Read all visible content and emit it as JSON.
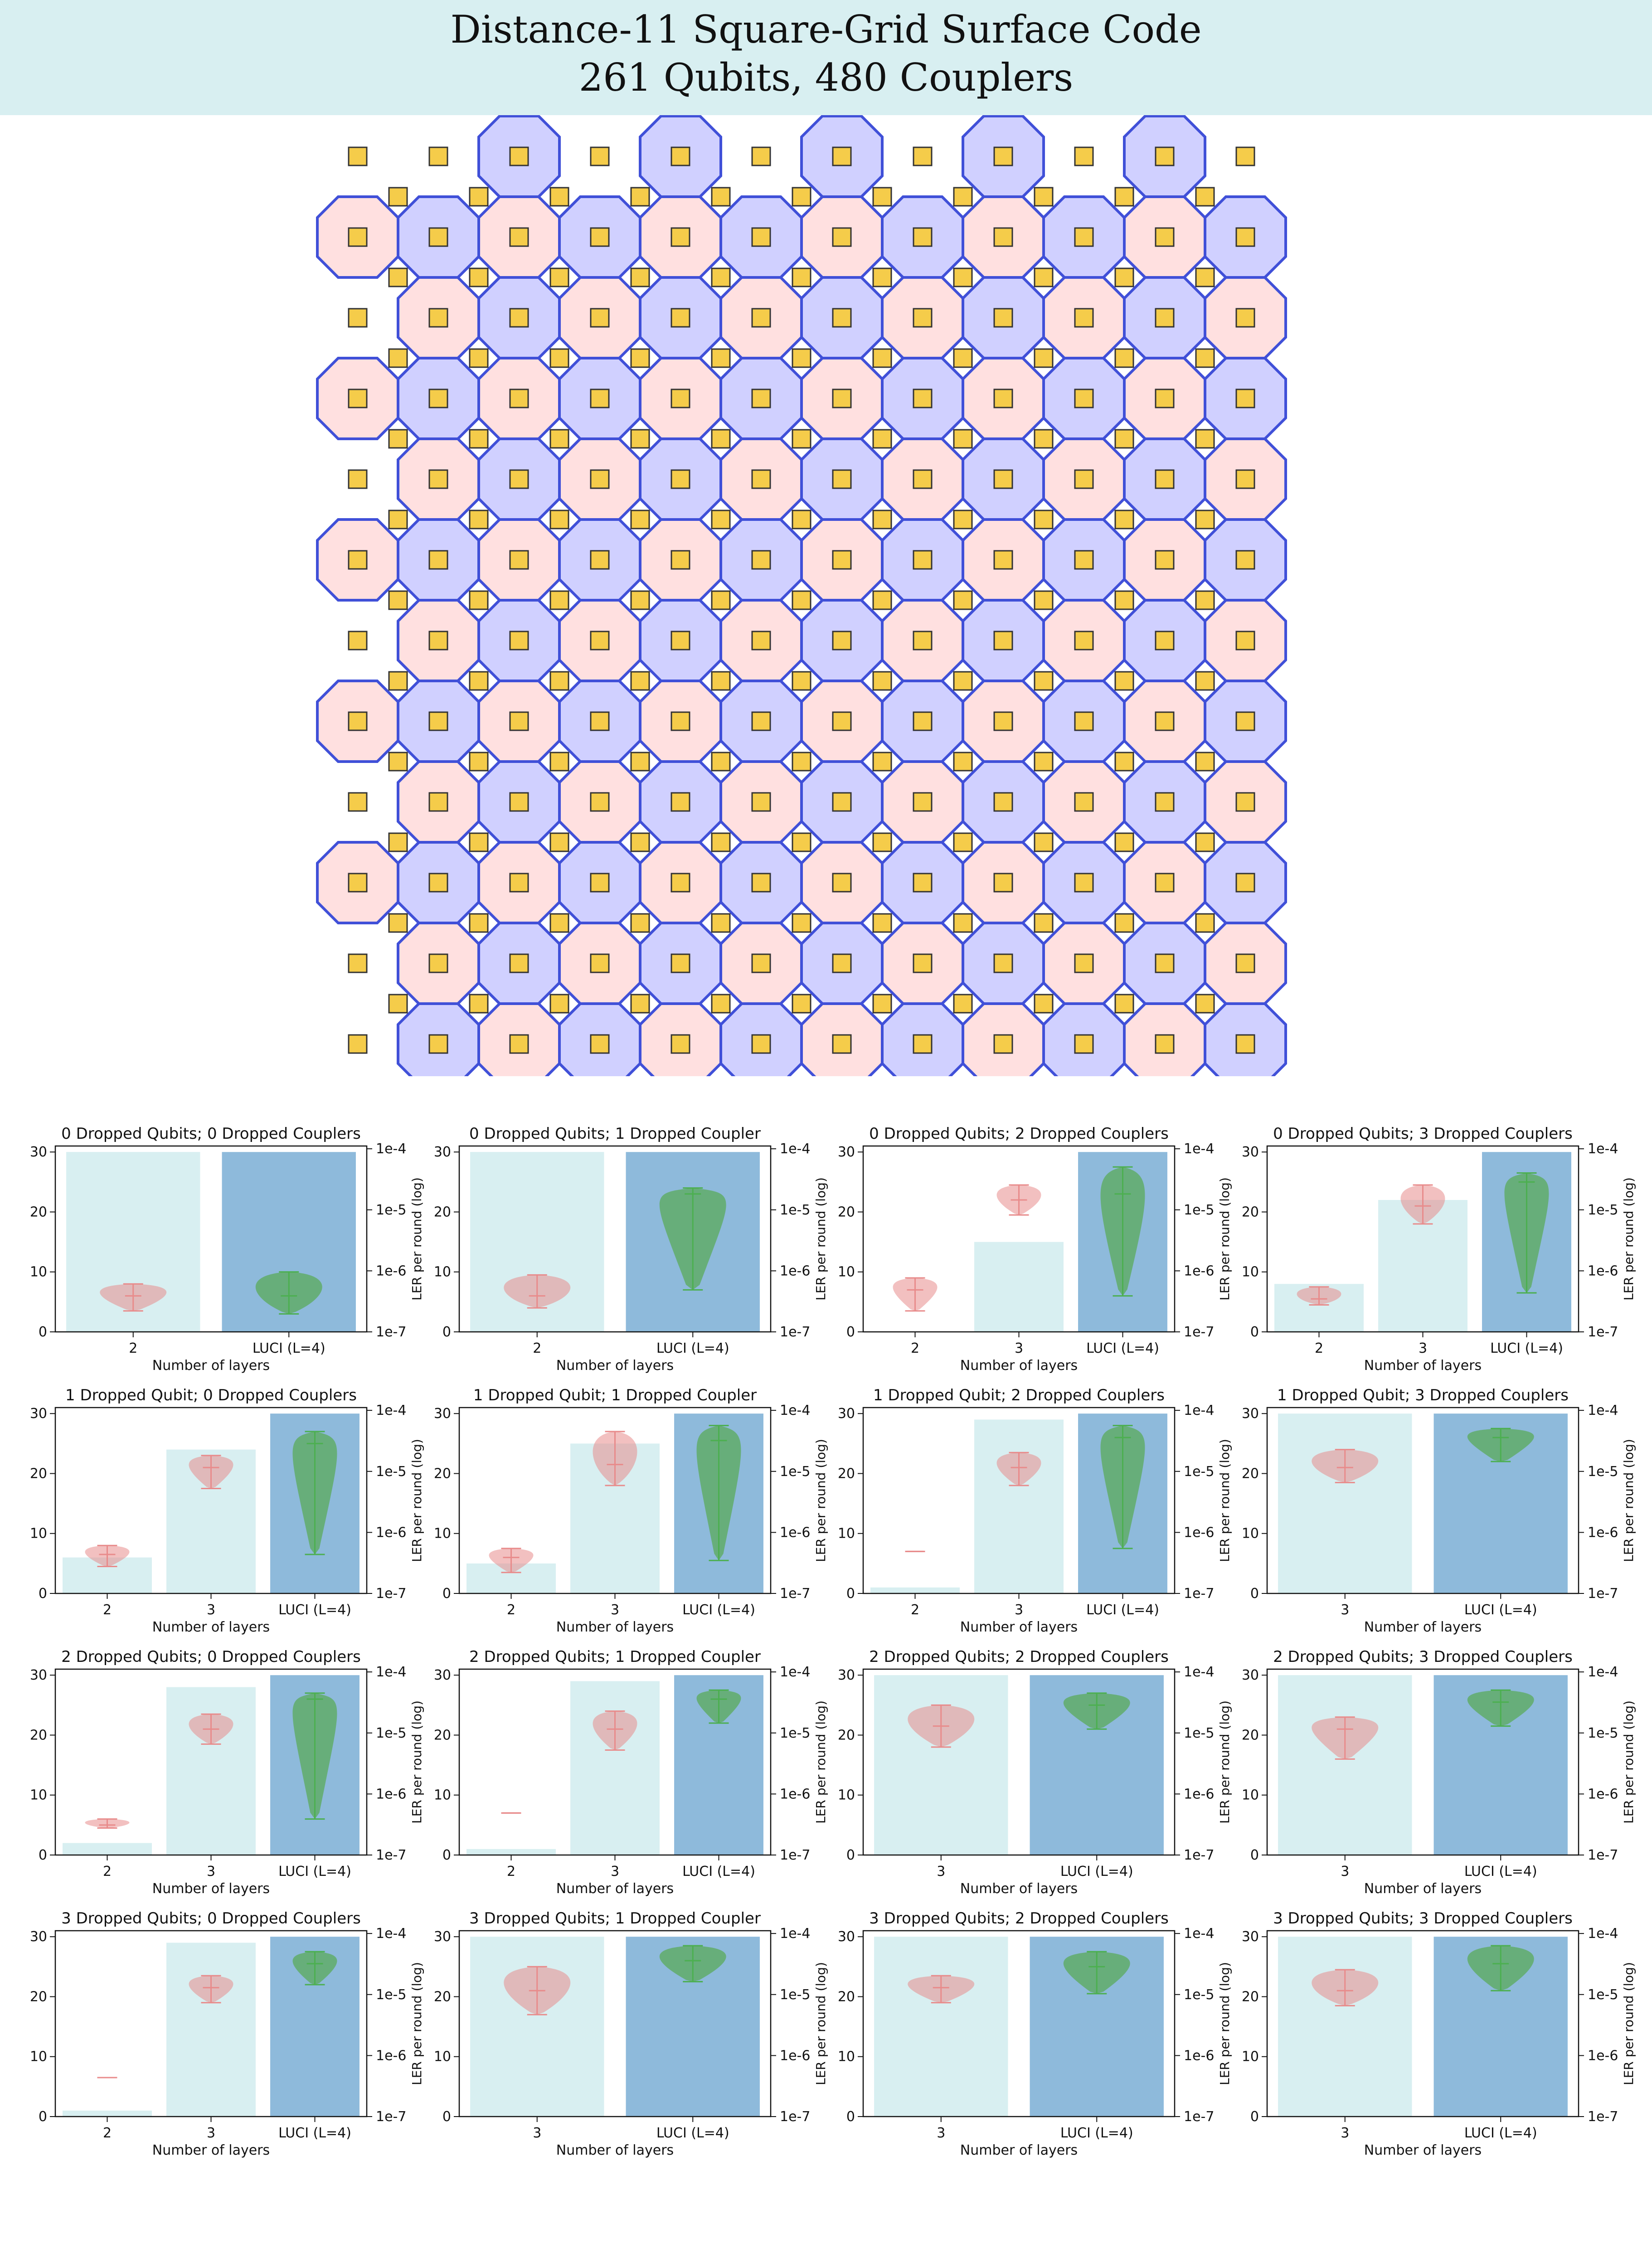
{
  "header": {
    "title_line1": "Distance-11 Square-Grid Surface Code",
    "title_line2": "261 Qubits, 480 Couplers"
  },
  "lattice": {
    "code_distance": 11,
    "colors": {
      "qubit": "#f5cc4a",
      "qubit_border": "#333333",
      "coupler": "#5060e0",
      "x_plaquette": "#d0d0ff",
      "z_plaquette": "#ffe0e0",
      "plaquette_border": "#4050d8"
    }
  },
  "chart_data": [
    {
      "type": "bar",
      "title": "0 Dropped Qubits; 0 Dropped Couplers",
      "xlabel": "Number of layers",
      "ylabel": "",
      "y2label": "LER per round (log)",
      "categories": [
        "2",
        "LUCI (L=4)"
      ],
      "values": [
        30,
        30
      ],
      "ylim": [
        0,
        31
      ],
      "yticks": [
        "0",
        "10",
        "20",
        "30"
      ],
      "y2ticks": [
        "1e-7",
        "1e-6",
        "1e-5",
        "1e-4"
      ],
      "violins": [
        {
          "min": 3.5,
          "max": 8,
          "median": 6
        },
        {
          "min": 3,
          "max": 10,
          "median": 6
        }
      ]
    },
    {
      "type": "bar",
      "title": "0 Dropped Qubits; 1 Dropped Coupler",
      "xlabel": "Number of layers",
      "ylabel": "",
      "y2label": "LER per round (log)",
      "categories": [
        "2",
        "LUCI (L=4)"
      ],
      "values": [
        30,
        30
      ],
      "ylim": [
        0,
        31
      ],
      "yticks": [
        "0",
        "10",
        "20",
        "30"
      ],
      "y2ticks": [
        "1e-7",
        "1e-6",
        "1e-5",
        "1e-4"
      ],
      "violins": [
        {
          "min": 4,
          "max": 9.5,
          "median": 6
        },
        {
          "min": 7,
          "max": 24,
          "median": 23
        }
      ]
    },
    {
      "type": "bar",
      "title": "0 Dropped Qubits; 2 Dropped Couplers",
      "xlabel": "Number of layers",
      "ylabel": "",
      "y2label": "LER per round (log)",
      "categories": [
        "2",
        "3",
        "LUCI (L=4)"
      ],
      "values": [
        0,
        15,
        30
      ],
      "ylim": [
        0,
        31
      ],
      "yticks": [
        "0",
        "10",
        "20",
        "30"
      ],
      "y2ticks": [
        "1e-7",
        "1e-6",
        "1e-5",
        "1e-4"
      ],
      "violins": [
        {
          "min": 3.5,
          "max": 9,
          "median": 7
        },
        {
          "min": 19.5,
          "max": 24.5,
          "median": 22
        },
        {
          "min": 6,
          "max": 27.5,
          "median": 23
        }
      ]
    },
    {
      "type": "bar",
      "title": "0 Dropped Qubits; 3 Dropped Couplers",
      "xlabel": "Number of layers",
      "ylabel": "",
      "y2label": "LER per round (log)",
      "categories": [
        "2",
        "3",
        "LUCI (L=4)"
      ],
      "values": [
        8,
        22,
        30
      ],
      "ylim": [
        0,
        31
      ],
      "yticks": [
        "0",
        "10",
        "20",
        "30"
      ],
      "y2ticks": [
        "1e-7",
        "1e-6",
        "1e-5",
        "1e-4"
      ],
      "violins": [
        {
          "min": 4.5,
          "max": 7.5,
          "median": 5.5
        },
        {
          "min": 18,
          "max": 24.5,
          "median": 21
        },
        {
          "min": 6.5,
          "max": 26.5,
          "median": 25
        }
      ]
    },
    {
      "type": "bar",
      "title": "1 Dropped Qubit; 0 Dropped Couplers",
      "xlabel": "Number of layers",
      "ylabel": "",
      "y2label": "LER per round (log)",
      "categories": [
        "2",
        "3",
        "LUCI (L=4)"
      ],
      "values": [
        6,
        24,
        30
      ],
      "ylim": [
        0,
        31
      ],
      "yticks": [
        "0",
        "10",
        "20",
        "30"
      ],
      "y2ticks": [
        "1e-7",
        "1e-6",
        "1e-5",
        "1e-4"
      ],
      "violins": [
        {
          "min": 4.5,
          "max": 8,
          "median": 6.5
        },
        {
          "min": 17.5,
          "max": 23,
          "median": 21
        },
        {
          "min": 6.5,
          "max": 27,
          "median": 25
        }
      ]
    },
    {
      "type": "bar",
      "title": "1 Dropped Qubit; 1 Dropped Coupler",
      "xlabel": "Number of layers",
      "ylabel": "",
      "y2label": "LER per round (log)",
      "categories": [
        "2",
        "3",
        "LUCI (L=4)"
      ],
      "values": [
        5,
        25,
        30
      ],
      "ylim": [
        0,
        31
      ],
      "yticks": [
        "0",
        "10",
        "20",
        "30"
      ],
      "y2ticks": [
        "1e-7",
        "1e-6",
        "1e-5",
        "1e-4"
      ],
      "violins": [
        {
          "min": 3.5,
          "max": 7.5,
          "median": 6
        },
        {
          "min": 18,
          "max": 27,
          "median": 21.5
        },
        {
          "min": 5.5,
          "max": 28,
          "median": 25.5
        }
      ]
    },
    {
      "type": "bar",
      "title": "1 Dropped Qubit; 2 Dropped Couplers",
      "xlabel": "Number of layers",
      "ylabel": "",
      "y2label": "LER per round (log)",
      "categories": [
        "2",
        "3",
        "LUCI (L=4)"
      ],
      "values": [
        1,
        29,
        30
      ],
      "ylim": [
        0,
        31
      ],
      "yticks": [
        "0",
        "10",
        "20",
        "30"
      ],
      "y2ticks": [
        "1e-7",
        "1e-6",
        "1e-5",
        "1e-4"
      ],
      "violins": [
        {
          "min": 7,
          "max": 7,
          "median": 7
        },
        {
          "min": 18,
          "max": 23.5,
          "median": 21
        },
        {
          "min": 7.5,
          "max": 28,
          "median": 26
        }
      ]
    },
    {
      "type": "bar",
      "title": "1 Dropped Qubit; 3 Dropped Couplers",
      "xlabel": "Number of layers",
      "ylabel": "",
      "y2label": "LER per round (log)",
      "categories": [
        "3",
        "LUCI (L=4)"
      ],
      "values": [
        30,
        30
      ],
      "ylim": [
        0,
        31
      ],
      "yticks": [
        "0",
        "10",
        "20",
        "30"
      ],
      "y2ticks": [
        "1e-7",
        "1e-6",
        "1e-5",
        "1e-4"
      ],
      "violins": [
        {
          "min": 18.5,
          "max": 24,
          "median": 21
        },
        {
          "min": 22,
          "max": 27.5,
          "median": 26
        }
      ]
    },
    {
      "type": "bar",
      "title": "2 Dropped Qubits; 0 Dropped Couplers",
      "xlabel": "Number of layers",
      "ylabel": "",
      "y2label": "LER per round (log)",
      "categories": [
        "2",
        "3",
        "LUCI (L=4)"
      ],
      "values": [
        2,
        28,
        30
      ],
      "ylim": [
        0,
        31
      ],
      "yticks": [
        "0",
        "10",
        "20",
        "30"
      ],
      "y2ticks": [
        "1e-7",
        "1e-6",
        "1e-5",
        "1e-4"
      ],
      "violins": [
        {
          "min": 4.5,
          "max": 6,
          "median": 5
        },
        {
          "min": 18.5,
          "max": 23.5,
          "median": 21
        },
        {
          "min": 6,
          "max": 27,
          "median": 26
        }
      ]
    },
    {
      "type": "bar",
      "title": "2 Dropped Qubits; 1 Dropped Coupler",
      "xlabel": "Number of layers",
      "ylabel": "",
      "y2label": "LER per round (log)",
      "categories": [
        "2",
        "3",
        "LUCI (L=4)"
      ],
      "values": [
        1,
        29,
        30
      ],
      "ylim": [
        0,
        31
      ],
      "yticks": [
        "0",
        "10",
        "20",
        "30"
      ],
      "y2ticks": [
        "1e-7",
        "1e-6",
        "1e-5",
        "1e-4"
      ],
      "violins": [
        {
          "min": 7,
          "max": 7,
          "median": 7
        },
        {
          "min": 17.5,
          "max": 24,
          "median": 21
        },
        {
          "min": 22,
          "max": 27.5,
          "median": 26
        }
      ]
    },
    {
      "type": "bar",
      "title": "2 Dropped Qubits; 2 Dropped Couplers",
      "xlabel": "Number of layers",
      "ylabel": "",
      "y2label": "LER per round (log)",
      "categories": [
        "3",
        "LUCI (L=4)"
      ],
      "values": [
        30,
        30
      ],
      "ylim": [
        0,
        31
      ],
      "yticks": [
        "0",
        "10",
        "20",
        "30"
      ],
      "y2ticks": [
        "1e-7",
        "1e-6",
        "1e-5",
        "1e-4"
      ],
      "violins": [
        {
          "min": 18,
          "max": 25,
          "median": 21.5
        },
        {
          "min": 21,
          "max": 27,
          "median": 25
        }
      ]
    },
    {
      "type": "bar",
      "title": "2 Dropped Qubits; 3 Dropped Couplers",
      "xlabel": "Number of layers",
      "ylabel": "",
      "y2label": "LER per round (log)",
      "categories": [
        "3",
        "LUCI (L=4)"
      ],
      "values": [
        30,
        30
      ],
      "ylim": [
        0,
        31
      ],
      "yticks": [
        "0",
        "10",
        "20",
        "30"
      ],
      "y2ticks": [
        "1e-7",
        "1e-6",
        "1e-5",
        "1e-4"
      ],
      "violins": [
        {
          "min": 16,
          "max": 23,
          "median": 21
        },
        {
          "min": 21.5,
          "max": 27.5,
          "median": 25.5
        }
      ]
    },
    {
      "type": "bar",
      "title": "3 Dropped Qubits; 0 Dropped Couplers",
      "xlabel": "Number of layers",
      "ylabel": "",
      "y2label": "LER per round (log)",
      "categories": [
        "2",
        "3",
        "LUCI (L=4)"
      ],
      "values": [
        1,
        29,
        30
      ],
      "ylim": [
        0,
        31
      ],
      "yticks": [
        "0",
        "10",
        "20",
        "30"
      ],
      "y2ticks": [
        "1e-7",
        "1e-6",
        "1e-5",
        "1e-4"
      ],
      "violins": [
        {
          "min": 6.5,
          "max": 6.5,
          "median": 6.5
        },
        {
          "min": 19,
          "max": 23.5,
          "median": 21.5
        },
        {
          "min": 22,
          "max": 27.5,
          "median": 25.5
        }
      ]
    },
    {
      "type": "bar",
      "title": "3 Dropped Qubits; 1 Dropped Coupler",
      "xlabel": "Number of layers",
      "ylabel": "",
      "y2label": "LER per round (log)",
      "categories": [
        "3",
        "LUCI (L=4)"
      ],
      "values": [
        30,
        30
      ],
      "ylim": [
        0,
        31
      ],
      "yticks": [
        "0",
        "10",
        "20",
        "30"
      ],
      "y2ticks": [
        "1e-7",
        "1e-6",
        "1e-5",
        "1e-4"
      ],
      "violins": [
        {
          "min": 17,
          "max": 25,
          "median": 21
        },
        {
          "min": 22.5,
          "max": 28.5,
          "median": 26
        }
      ]
    },
    {
      "type": "bar",
      "title": "3 Dropped Qubits; 2 Dropped Couplers",
      "xlabel": "Number of layers",
      "ylabel": "",
      "y2label": "LER per round (log)",
      "categories": [
        "3",
        "LUCI (L=4)"
      ],
      "values": [
        30,
        30
      ],
      "ylim": [
        0,
        31
      ],
      "yticks": [
        "0",
        "10",
        "20",
        "30"
      ],
      "y2ticks": [
        "1e-7",
        "1e-6",
        "1e-5",
        "1e-4"
      ],
      "violins": [
        {
          "min": 19,
          "max": 23.5,
          "median": 21.5
        },
        {
          "min": 20.5,
          "max": 27.5,
          "median": 25
        }
      ]
    },
    {
      "type": "bar",
      "title": "3 Dropped Qubits; 3 Dropped Couplers",
      "xlabel": "Number of layers",
      "ylabel": "",
      "y2label": "LER per round (log)",
      "categories": [
        "3",
        "LUCI (L=4)"
      ],
      "values": [
        30,
        30
      ],
      "ylim": [
        0,
        31
      ],
      "yticks": [
        "0",
        "10",
        "20",
        "30"
      ],
      "y2ticks": [
        "1e-7",
        "1e-6",
        "1e-5",
        "1e-4"
      ],
      "violins": [
        {
          "min": 18.5,
          "max": 24.5,
          "median": 21
        },
        {
          "min": 21,
          "max": 28.5,
          "median": 25.5
        }
      ]
    }
  ]
}
